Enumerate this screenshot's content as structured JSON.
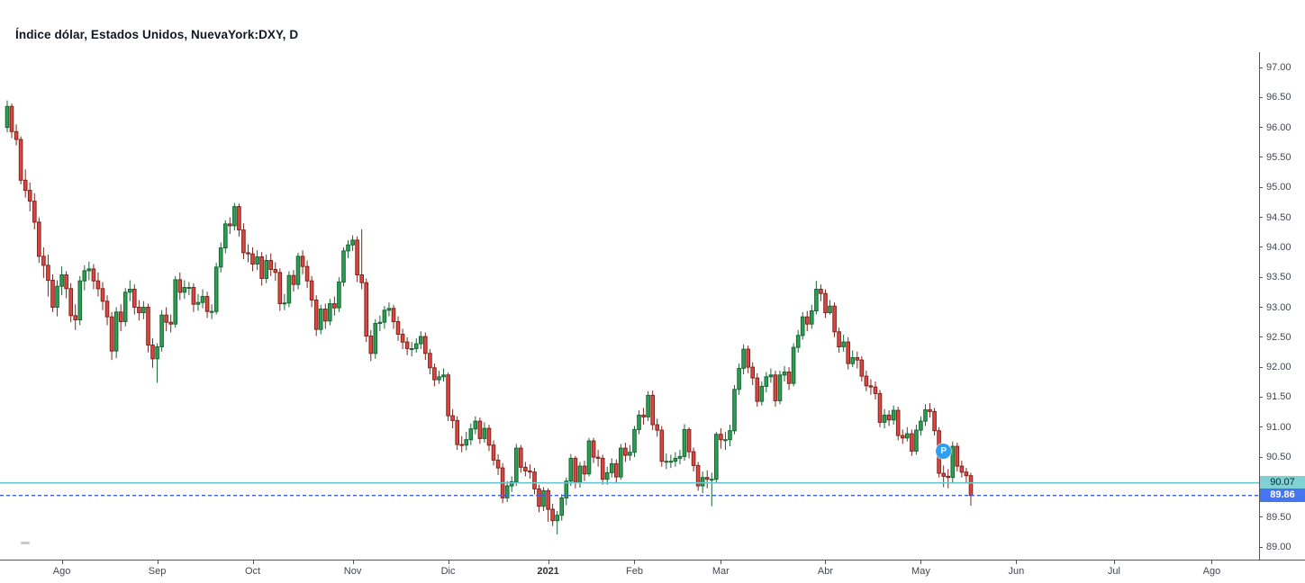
{
  "header": {
    "title": "Índice dólar, Estados Unidos, NuevaYork:DXY, D"
  },
  "chart_data": {
    "type": "candlestick",
    "title": "Índice dólar, Estados Unidos, NuevaYork:DXY, D",
    "symbol": "NuevaYork:DXY",
    "interval": "D",
    "grid": false,
    "legend_position": "none",
    "y_axis": {
      "side": "right",
      "min": 88.8,
      "max": 98.1,
      "ticks": [
        "97.00",
        "96.50",
        "96.00",
        "95.50",
        "95.00",
        "94.50",
        "94.00",
        "93.50",
        "93.00",
        "92.50",
        "92.00",
        "91.50",
        "91.00",
        "90.50",
        "90.00",
        "89.50",
        "89.00"
      ]
    },
    "x_axis": {
      "side": "bottom",
      "ticks": [
        {
          "label": "Ago",
          "index": 12
        },
        {
          "label": "Sep",
          "index": 33
        },
        {
          "label": "Oct",
          "index": 54
        },
        {
          "label": "Nov",
          "index": 76
        },
        {
          "label": "Dic",
          "index": 97
        },
        {
          "label": "2021",
          "index": 119,
          "bold": true
        },
        {
          "label": "Feb",
          "index": 138
        },
        {
          "label": "Mar",
          "index": 157
        },
        {
          "label": "Abr",
          "index": 180
        },
        {
          "label": "May",
          "index": 201
        },
        {
          "label": "Jun",
          "index": 222
        },
        {
          "label": "Jul",
          "index": 243.5
        },
        {
          "label": "Ago",
          "index": 265
        }
      ]
    },
    "colors": {
      "up_fill": "#2e9e53",
      "up_border": "#156733",
      "down_fill": "#e0453f",
      "down_border": "#7c2620",
      "teal_line": "#68c6cb",
      "teal_label_bg": "#7fd2d4",
      "blue_line": "#3c5ff2",
      "blue_label_bg": "#4675f2",
      "marker_blue": "#2f9ff5"
    },
    "lines": [
      {
        "role": "horizontal-level",
        "price": 90.07,
        "style": "solid",
        "label": "90.07"
      },
      {
        "role": "last-price",
        "price": 89.86,
        "style": "dotted",
        "label": "89.86"
      }
    ],
    "marker": {
      "index": 206,
      "price": 90.6,
      "label": "P"
    },
    "ohlc_order": "open,high,low,close",
    "candles": [
      [
        96.0,
        96.45,
        95.92,
        96.35
      ],
      [
        96.35,
        96.4,
        95.82,
        95.93
      ],
      [
        95.93,
        96.05,
        95.7,
        95.8
      ],
      [
        95.8,
        95.85,
        95.05,
        95.12
      ],
      [
        95.12,
        95.3,
        94.83,
        94.95
      ],
      [
        94.95,
        95.08,
        94.6,
        94.77
      ],
      [
        94.77,
        94.9,
        94.3,
        94.42
      ],
      [
        94.42,
        94.5,
        93.74,
        93.85
      ],
      [
        93.85,
        94.0,
        93.49,
        93.7
      ],
      [
        93.7,
        93.88,
        93.18,
        93.45
      ],
      [
        93.45,
        93.55,
        92.92,
        93.0
      ],
      [
        93.0,
        93.45,
        92.85,
        93.35
      ],
      [
        93.35,
        93.68,
        93.2,
        93.54
      ],
      [
        93.54,
        93.6,
        93.15,
        93.31
      ],
      [
        93.31,
        93.4,
        92.75,
        92.86
      ],
      [
        92.86,
        93.05,
        92.62,
        92.79
      ],
      [
        92.79,
        93.52,
        92.7,
        93.44
      ],
      [
        93.44,
        93.7,
        93.28,
        93.61
      ],
      [
        93.61,
        93.76,
        93.45,
        93.64
      ],
      [
        93.64,
        93.72,
        93.3,
        93.44
      ],
      [
        93.44,
        93.58,
        93.18,
        93.31
      ],
      [
        93.31,
        93.42,
        92.95,
        93.1
      ],
      [
        93.1,
        93.2,
        92.7,
        92.84
      ],
      [
        92.84,
        92.92,
        92.12,
        92.27
      ],
      [
        92.27,
        93.0,
        92.15,
        92.92
      ],
      [
        92.92,
        93.05,
        92.6,
        92.76
      ],
      [
        92.76,
        93.32,
        92.68,
        93.25
      ],
      [
        93.25,
        93.45,
        93.1,
        93.3
      ],
      [
        93.3,
        93.38,
        92.88,
        93.0
      ],
      [
        93.0,
        93.12,
        92.78,
        92.91
      ],
      [
        92.91,
        93.1,
        92.8,
        93.0
      ],
      [
        93.0,
        93.06,
        92.25,
        92.37
      ],
      [
        92.37,
        92.48,
        91.99,
        92.14
      ],
      [
        92.14,
        92.4,
        91.74,
        92.34
      ],
      [
        92.34,
        92.95,
        92.26,
        92.87
      ],
      [
        92.87,
        93.0,
        92.6,
        92.75
      ],
      [
        92.75,
        92.88,
        92.58,
        92.72
      ],
      [
        92.72,
        93.52,
        92.66,
        93.46
      ],
      [
        93.46,
        93.58,
        93.12,
        93.25
      ],
      [
        93.25,
        93.45,
        93.14,
        93.33
      ],
      [
        93.33,
        93.42,
        93.2,
        93.33
      ],
      [
        93.33,
        93.4,
        92.92,
        93.05
      ],
      [
        93.05,
        93.22,
        92.94,
        93.08
      ],
      [
        93.08,
        93.3,
        92.98,
        93.18
      ],
      [
        93.18,
        93.26,
        92.82,
        92.93
      ],
      [
        92.93,
        93.05,
        92.8,
        92.93
      ],
      [
        92.93,
        93.74,
        92.88,
        93.67
      ],
      [
        93.67,
        94.08,
        93.58,
        93.99
      ],
      [
        93.99,
        94.45,
        93.9,
        94.39
      ],
      [
        94.39,
        94.5,
        94.22,
        94.36
      ],
      [
        94.36,
        94.74,
        94.28,
        94.68
      ],
      [
        94.68,
        94.73,
        94.18,
        94.29
      ],
      [
        94.29,
        94.4,
        93.8,
        93.91
      ],
      [
        93.91,
        94.05,
        93.75,
        93.89
      ],
      [
        93.89,
        94.0,
        93.6,
        93.72
      ],
      [
        93.72,
        93.95,
        93.62,
        93.84
      ],
      [
        93.84,
        93.92,
        93.36,
        93.48
      ],
      [
        93.48,
        93.88,
        93.4,
        93.78
      ],
      [
        93.78,
        93.9,
        93.52,
        93.63
      ],
      [
        93.63,
        93.75,
        93.44,
        93.58
      ],
      [
        93.58,
        93.65,
        92.94,
        93.06
      ],
      [
        93.06,
        93.22,
        92.95,
        93.07
      ],
      [
        93.07,
        93.6,
        93.0,
        93.53
      ],
      [
        93.53,
        93.62,
        93.26,
        93.38
      ],
      [
        93.38,
        93.91,
        93.3,
        93.85
      ],
      [
        93.85,
        93.95,
        93.55,
        93.68
      ],
      [
        93.68,
        93.78,
        93.32,
        93.44
      ],
      [
        93.44,
        93.52,
        93.0,
        93.12
      ],
      [
        93.12,
        93.2,
        92.52,
        92.63
      ],
      [
        92.63,
        93.04,
        92.55,
        92.97
      ],
      [
        92.97,
        93.06,
        92.64,
        92.77
      ],
      [
        92.77,
        93.14,
        92.7,
        93.06
      ],
      [
        93.06,
        93.18,
        92.86,
        92.99
      ],
      [
        92.99,
        93.5,
        92.92,
        93.42
      ],
      [
        93.42,
        94.0,
        93.35,
        93.94
      ],
      [
        93.94,
        94.12,
        93.82,
        94.04
      ],
      [
        94.04,
        94.2,
        93.94,
        94.12
      ],
      [
        94.12,
        94.18,
        93.42,
        93.54
      ],
      [
        93.54,
        94.3,
        93.3,
        93.41
      ],
      [
        93.41,
        93.48,
        92.42,
        92.52
      ],
      [
        92.52,
        92.62,
        92.1,
        92.23
      ],
      [
        92.23,
        92.8,
        92.14,
        92.73
      ],
      [
        92.73,
        92.86,
        92.6,
        92.75
      ],
      [
        92.75,
        93.02,
        92.64,
        92.95
      ],
      [
        92.95,
        93.08,
        92.85,
        92.98
      ],
      [
        92.98,
        93.04,
        92.64,
        92.76
      ],
      [
        92.76,
        92.85,
        92.44,
        92.55
      ],
      [
        92.55,
        92.64,
        92.3,
        92.42
      ],
      [
        92.42,
        92.5,
        92.2,
        92.31
      ],
      [
        92.31,
        92.42,
        92.18,
        92.31
      ],
      [
        92.31,
        92.48,
        92.24,
        92.39
      ],
      [
        92.39,
        92.6,
        92.3,
        92.51
      ],
      [
        92.51,
        92.58,
        92.12,
        92.23
      ],
      [
        92.23,
        92.3,
        91.88,
        91.99
      ],
      [
        91.99,
        92.06,
        91.68,
        91.79
      ],
      [
        91.79,
        91.94,
        91.72,
        91.84
      ],
      [
        91.84,
        91.98,
        91.76,
        91.87
      ],
      [
        91.87,
        91.91,
        91.1,
        91.19
      ],
      [
        91.19,
        91.3,
        90.98,
        91.11
      ],
      [
        91.11,
        91.18,
        90.62,
        90.71
      ],
      [
        90.71,
        90.85,
        90.58,
        90.7
      ],
      [
        90.7,
        90.92,
        90.61,
        90.79
      ],
      [
        90.79,
        91.06,
        90.7,
        90.97
      ],
      [
        90.97,
        91.18,
        90.88,
        91.1
      ],
      [
        91.1,
        91.16,
        90.72,
        90.81
      ],
      [
        90.81,
        91.08,
        90.74,
        90.98
      ],
      [
        90.98,
        91.04,
        90.6,
        90.7
      ],
      [
        90.7,
        90.78,
        90.36,
        90.45
      ],
      [
        90.45,
        90.55,
        90.2,
        90.32
      ],
      [
        90.32,
        90.4,
        89.73,
        89.82
      ],
      [
        89.82,
        90.1,
        89.75,
        90.02
      ],
      [
        90.02,
        90.18,
        89.92,
        90.09
      ],
      [
        90.09,
        90.72,
        90.02,
        90.65
      ],
      [
        90.65,
        90.7,
        90.24,
        90.33
      ],
      [
        90.33,
        90.42,
        90.18,
        90.27
      ],
      [
        90.27,
        90.38,
        90.14,
        90.25
      ],
      [
        90.25,
        90.32,
        89.88,
        89.97
      ],
      [
        89.97,
        90.04,
        89.58,
        89.68
      ],
      [
        89.68,
        90.0,
        89.6,
        89.94
      ],
      [
        89.94,
        89.98,
        89.42,
        89.63
      ],
      [
        89.63,
        89.72,
        89.35,
        89.44
      ],
      [
        89.44,
        89.6,
        89.21,
        89.53
      ],
      [
        89.53,
        89.88,
        89.44,
        89.82
      ],
      [
        89.82,
        90.16,
        89.7,
        90.1
      ],
      [
        90.1,
        90.55,
        90.02,
        90.48
      ],
      [
        90.48,
        90.52,
        89.98,
        90.08
      ],
      [
        90.08,
        90.42,
        89.99,
        90.35
      ],
      [
        90.35,
        90.44,
        90.1,
        90.22
      ],
      [
        90.22,
        90.82,
        90.18,
        90.77
      ],
      [
        90.77,
        90.82,
        90.4,
        90.5
      ],
      [
        90.5,
        90.62,
        90.34,
        90.48
      ],
      [
        90.48,
        90.54,
        90.04,
        90.13
      ],
      [
        90.13,
        90.34,
        90.04,
        90.24
      ],
      [
        90.24,
        90.48,
        90.16,
        90.39
      ],
      [
        90.39,
        90.46,
        90.06,
        90.17
      ],
      [
        90.17,
        90.72,
        90.12,
        90.65
      ],
      [
        90.65,
        90.74,
        90.42,
        90.53
      ],
      [
        90.53,
        90.7,
        90.44,
        90.58
      ],
      [
        90.58,
        91.02,
        90.5,
        90.96
      ],
      [
        90.96,
        91.28,
        90.88,
        91.2
      ],
      [
        91.2,
        91.32,
        91.04,
        91.17
      ],
      [
        91.17,
        91.6,
        91.1,
        91.53
      ],
      [
        91.53,
        91.61,
        90.95,
        91.04
      ],
      [
        91.04,
        91.14,
        90.84,
        90.95
      ],
      [
        90.95,
        91.02,
        90.34,
        90.43
      ],
      [
        90.43,
        90.56,
        90.3,
        90.43
      ],
      [
        90.43,
        90.54,
        90.32,
        90.43
      ],
      [
        90.43,
        90.58,
        90.34,
        90.48
      ],
      [
        90.48,
        90.62,
        90.38,
        90.51
      ],
      [
        90.51,
        91.05,
        90.44,
        90.96
      ],
      [
        90.96,
        91.0,
        90.48,
        90.59
      ],
      [
        90.59,
        90.66,
        90.26,
        90.36
      ],
      [
        90.36,
        90.42,
        89.94,
        90.02
      ],
      [
        90.02,
        90.26,
        89.9,
        90.16
      ],
      [
        90.16,
        90.28,
        89.98,
        90.13
      ],
      [
        90.13,
        90.24,
        89.68,
        90.13
      ],
      [
        90.13,
        90.92,
        90.06,
        90.88
      ],
      [
        90.88,
        90.98,
        90.64,
        90.79
      ],
      [
        90.79,
        90.92,
        90.62,
        90.79
      ],
      [
        90.79,
        91.04,
        90.68,
        90.94
      ],
      [
        90.94,
        91.7,
        90.88,
        91.63
      ],
      [
        91.63,
        92.06,
        91.54,
        91.98
      ],
      [
        91.98,
        92.38,
        91.88,
        92.3
      ],
      [
        92.3,
        92.36,
        91.9,
        92.0
      ],
      [
        92.0,
        92.08,
        91.7,
        91.82
      ],
      [
        91.82,
        91.9,
        91.34,
        91.43
      ],
      [
        91.43,
        91.76,
        91.36,
        91.68
      ],
      [
        91.68,
        91.92,
        91.58,
        91.84
      ],
      [
        91.84,
        91.98,
        91.74,
        91.87
      ],
      [
        91.87,
        91.94,
        91.34,
        91.44
      ],
      [
        91.44,
        91.94,
        91.38,
        91.87
      ],
      [
        91.87,
        92.02,
        91.76,
        91.92
      ],
      [
        91.92,
        92.0,
        91.62,
        91.73
      ],
      [
        91.73,
        92.4,
        91.68,
        92.33
      ],
      [
        92.33,
        92.62,
        92.24,
        92.53
      ],
      [
        92.53,
        92.92,
        92.46,
        92.84
      ],
      [
        92.84,
        92.94,
        92.6,
        92.72
      ],
      [
        92.72,
        93.04,
        92.64,
        92.94
      ],
      [
        92.94,
        93.44,
        92.88,
        93.3
      ],
      [
        93.3,
        93.38,
        93.1,
        93.23
      ],
      [
        93.23,
        93.3,
        92.82,
        92.91
      ],
      [
        92.91,
        93.12,
        92.88,
        93.02
      ],
      [
        93.02,
        93.08,
        92.5,
        92.59
      ],
      [
        92.59,
        92.66,
        92.24,
        92.34
      ],
      [
        92.34,
        92.54,
        92.26,
        92.42
      ],
      [
        92.42,
        92.5,
        91.96,
        92.06
      ],
      [
        92.06,
        92.28,
        92.0,
        92.16
      ],
      [
        92.16,
        92.26,
        91.98,
        92.12
      ],
      [
        92.12,
        92.18,
        91.76,
        91.85
      ],
      [
        91.85,
        91.94,
        91.6,
        91.69
      ],
      [
        91.69,
        91.8,
        91.54,
        91.67
      ],
      [
        91.67,
        91.76,
        91.46,
        91.56
      ],
      [
        91.56,
        91.62,
        91.0,
        91.08
      ],
      [
        91.08,
        91.3,
        90.98,
        91.2
      ],
      [
        91.2,
        91.28,
        91.02,
        91.12
      ],
      [
        91.12,
        91.36,
        91.04,
        91.28
      ],
      [
        91.28,
        91.34,
        90.78,
        90.86
      ],
      [
        90.86,
        90.96,
        90.72,
        90.82
      ],
      [
        90.82,
        91.0,
        90.76,
        90.89
      ],
      [
        90.89,
        90.96,
        90.52,
        90.6
      ],
      [
        90.6,
        91.04,
        90.54,
        90.95
      ],
      [
        90.95,
        91.18,
        90.86,
        91.1
      ],
      [
        91.1,
        91.38,
        91.02,
        91.29
      ],
      [
        91.29,
        91.4,
        91.16,
        91.26
      ],
      [
        91.26,
        91.32,
        90.86,
        90.94
      ],
      [
        90.94,
        91.0,
        90.16,
        90.23
      ],
      [
        90.23,
        90.36,
        90.0,
        90.18
      ],
      [
        90.18,
        90.3,
        89.98,
        90.16
      ],
      [
        90.16,
        90.76,
        90.08,
        90.68
      ],
      [
        90.68,
        90.74,
        90.26,
        90.35
      ],
      [
        90.35,
        90.44,
        90.16,
        90.25
      ],
      [
        90.25,
        90.32,
        90.08,
        90.19
      ],
      [
        90.19,
        90.24,
        89.69,
        89.86
      ]
    ]
  }
}
